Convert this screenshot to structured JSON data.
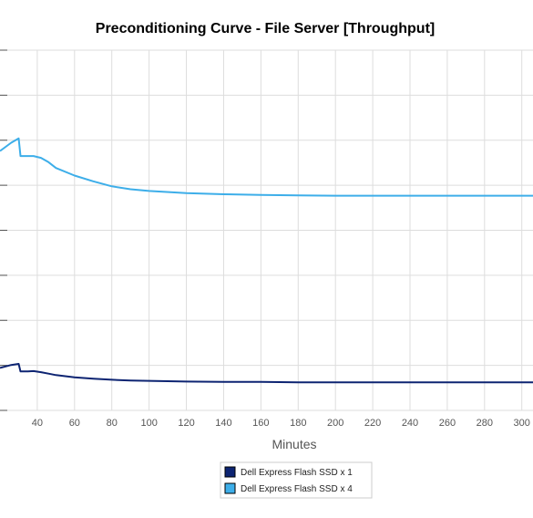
{
  "chart_data": {
    "type": "line",
    "title": "Preconditioning Curve - File Server [Throughput]",
    "xlabel": "Minutes",
    "ylabel": "",
    "x_ticks": [
      40,
      60,
      80,
      100,
      120,
      140,
      160,
      180,
      200,
      220,
      240,
      260,
      280,
      300
    ],
    "xlim": [
      20,
      306
    ],
    "ylim": [
      0,
      100
    ],
    "y_ticks_labeled": false,
    "grid": true,
    "legend_position": "bottom",
    "x": [
      20,
      26,
      30,
      31,
      35,
      38,
      42,
      46,
      50,
      60,
      70,
      80,
      90,
      100,
      120,
      140,
      160,
      180,
      200,
      220,
      240,
      260,
      280,
      306
    ],
    "series": [
      {
        "name": "Dell Express Flash SSD x 1",
        "color": "#0d2472",
        "values": [
          11.8,
          12.6,
          12.9,
          10.8,
          10.8,
          10.9,
          10.6,
          10.2,
          9.8,
          9.2,
          8.8,
          8.5,
          8.3,
          8.2,
          8.0,
          7.9,
          7.9,
          7.8,
          7.8,
          7.8,
          7.8,
          7.8,
          7.8,
          7.8
        ]
      },
      {
        "name": "Dell Express Flash SSD x 4",
        "color": "#3daee9",
        "values": [
          72.0,
          74.3,
          75.5,
          70.6,
          70.6,
          70.6,
          70.1,
          68.9,
          67.3,
          65.2,
          63.6,
          62.2,
          61.4,
          60.9,
          60.3,
          60.0,
          59.8,
          59.7,
          59.6,
          59.6,
          59.6,
          59.6,
          59.6,
          59.6
        ]
      }
    ]
  }
}
